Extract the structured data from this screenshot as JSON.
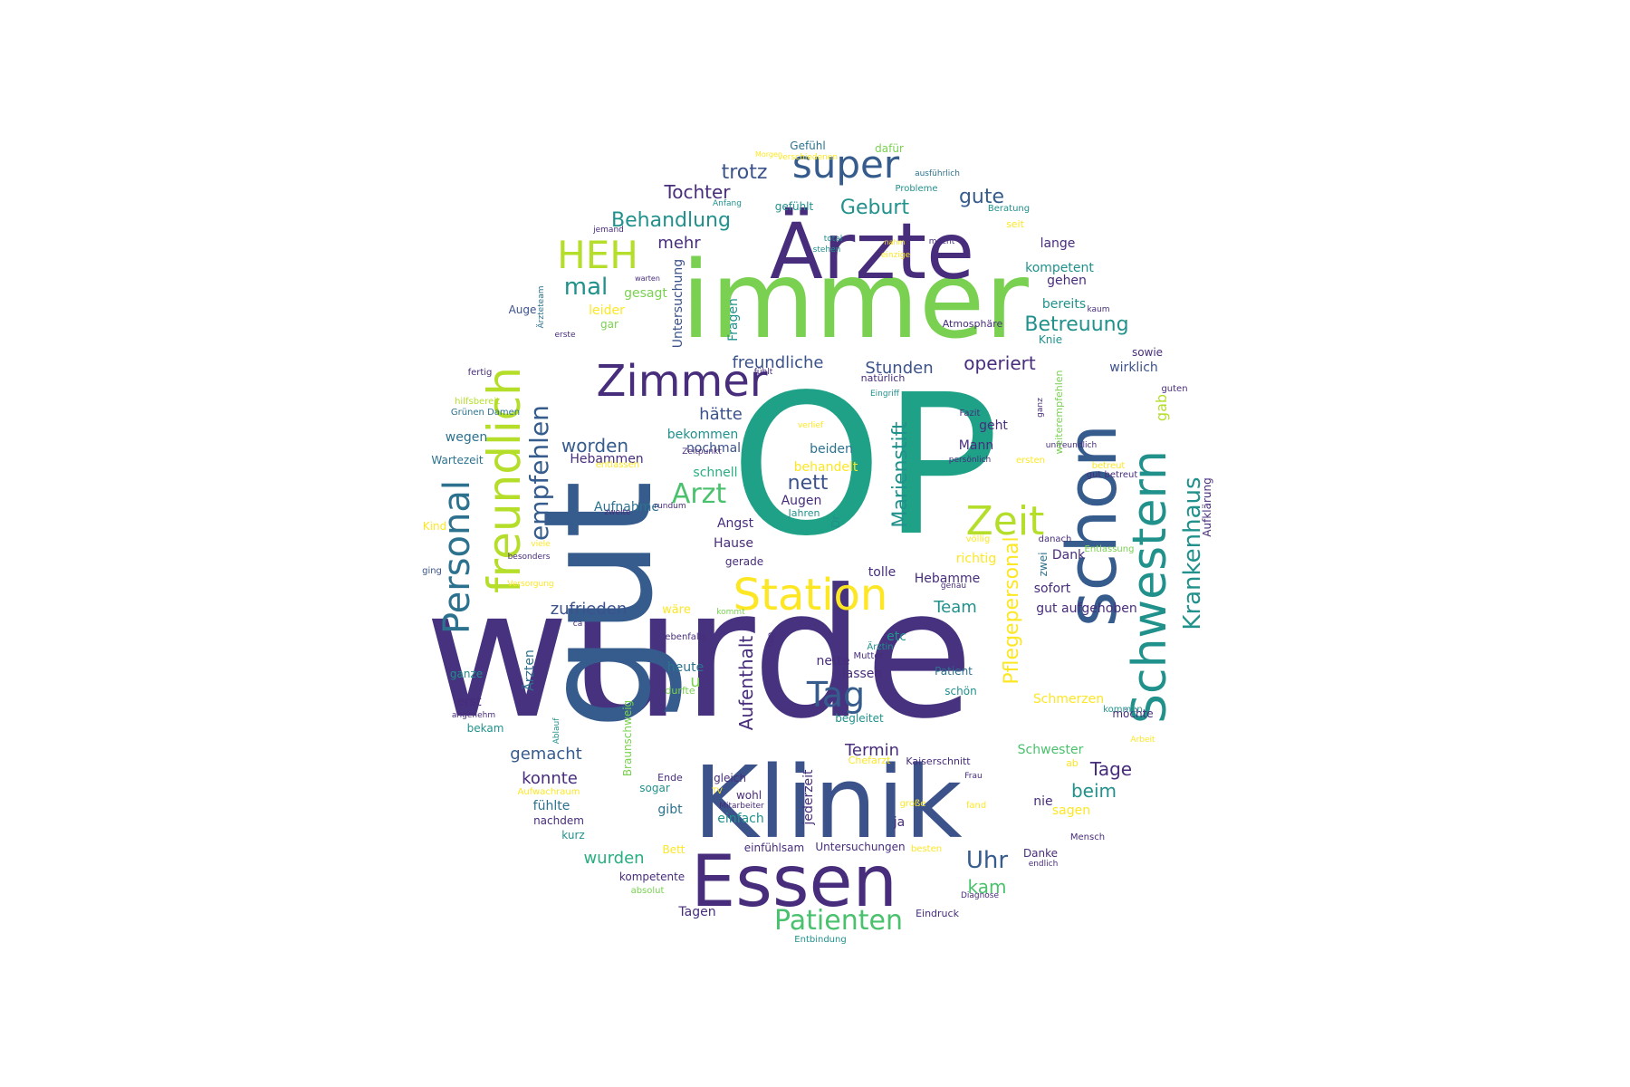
{
  "palette": {
    "dark_purple": "#46327e",
    "purple": "#472d7b",
    "blue": "#365c8d",
    "steel_blue": "#3b528b",
    "teal_blue": "#2c728e",
    "teal": "#21918c",
    "green_teal": "#1fa187",
    "sea_green": "#28ae80",
    "green": "#4ac16d",
    "lime": "#7ad151",
    "yellow_green": "#b5de2b",
    "yellow": "#fde725"
  },
  "words": [
    {
      "text": "wurde",
      "color": "dark_purple"
    },
    {
      "text": "OP",
      "color": "green_teal"
    },
    {
      "text": "gut",
      "color": "blue"
    },
    {
      "text": "immer",
      "color": "lime"
    },
    {
      "text": "Klinik",
      "color": "steel_blue"
    },
    {
      "text": "Ärzte",
      "color": "purple"
    },
    {
      "text": "Essen",
      "color": "purple"
    },
    {
      "text": "schon",
      "color": "blue"
    },
    {
      "text": "Schwestern",
      "color": "teal"
    },
    {
      "text": "HEH",
      "color": "yellow_green"
    },
    {
      "text": "freundlich",
      "color": "yellow_green"
    },
    {
      "text": "Personal",
      "color": "teal_blue"
    },
    {
      "text": "Station",
      "color": "yellow"
    },
    {
      "text": "Zimmer",
      "color": "purple"
    },
    {
      "text": "super",
      "color": "blue"
    },
    {
      "text": "Zeit",
      "color": "yellow_green"
    },
    {
      "text": "Tag",
      "color": "blue"
    },
    {
      "text": "Patienten",
      "color": "green"
    },
    {
      "text": "Krankenhaus",
      "color": "teal"
    },
    {
      "text": "empfehlen",
      "color": "blue"
    },
    {
      "text": "Arzt",
      "color": "green"
    },
    {
      "text": "mal",
      "color": "teal"
    },
    {
      "text": "Behandlung",
      "color": "teal"
    },
    {
      "text": "Marienstift",
      "color": "teal"
    },
    {
      "text": "Betreuung",
      "color": "teal"
    },
    {
      "text": "Uhr",
      "color": "blue"
    },
    {
      "text": "Pflegepersonal",
      "color": "yellow"
    },
    {
      "text": "Aufenthalt",
      "color": "purple"
    },
    {
      "text": "Tochter",
      "color": "purple"
    },
    {
      "text": "Geburt",
      "color": "teal"
    },
    {
      "text": "trotz",
      "color": "steel_blue"
    },
    {
      "text": "gute",
      "color": "blue"
    },
    {
      "text": "freundliche",
      "color": "steel_blue"
    },
    {
      "text": "Stunden",
      "color": "steel_blue"
    },
    {
      "text": "operiert",
      "color": "purple"
    },
    {
      "text": "worden",
      "color": "blue"
    },
    {
      "text": "nett",
      "color": "steel_blue"
    },
    {
      "text": "zufrieden",
      "color": "steel_blue"
    },
    {
      "text": "konnte",
      "color": "purple"
    },
    {
      "text": "gemacht",
      "color": "blue"
    },
    {
      "text": "wurden",
      "color": "sea_green"
    },
    {
      "text": "Termin",
      "color": "purple"
    },
    {
      "text": "Tage",
      "color": "purple"
    },
    {
      "text": "beim",
      "color": "teal"
    },
    {
      "text": "kam",
      "color": "green"
    },
    {
      "text": "Team",
      "color": "teal"
    },
    {
      "text": "mehr",
      "color": "purple"
    },
    {
      "text": "hätte",
      "color": "steel_blue"
    },
    {
      "text": "Untersuchung",
      "color": "steel_blue"
    },
    {
      "text": "Fragen",
      "color": "teal"
    },
    {
      "text": "gab",
      "color": "yellow_green"
    },
    {
      "text": "wirklich",
      "color": "steel_blue"
    },
    {
      "text": "Aufklärung",
      "color": "purple"
    },
    {
      "text": "kompetent",
      "color": "teal"
    },
    {
      "text": "lange",
      "color": "purple"
    },
    {
      "text": "gehen",
      "color": "purple"
    },
    {
      "text": "bereits",
      "color": "teal"
    },
    {
      "text": "sowie",
      "color": "purple"
    },
    {
      "text": "Knie",
      "color": "teal"
    },
    {
      "text": "gesagt",
      "color": "lime"
    },
    {
      "text": "leider",
      "color": "yellow"
    },
    {
      "text": "gar",
      "color": "lime"
    },
    {
      "text": "Auge",
      "color": "steel_blue"
    },
    {
      "text": "bekommen",
      "color": "teal"
    },
    {
      "text": "nochmal",
      "color": "steel_blue"
    },
    {
      "text": "Hebammen",
      "color": "purple"
    },
    {
      "text": "schnell",
      "color": "sea_green"
    },
    {
      "text": "beiden",
      "color": "teal_blue"
    },
    {
      "text": "behandelt",
      "color": "yellow"
    },
    {
      "text": "Aufnahme",
      "color": "teal_blue"
    },
    {
      "text": "Angst",
      "color": "purple"
    },
    {
      "text": "Hause",
      "color": "purple"
    },
    {
      "text": "gerade",
      "color": "purple"
    },
    {
      "text": "tolle",
      "color": "purple"
    },
    {
      "text": "Hebamme",
      "color": "purple"
    },
    {
      "text": "richtig",
      "color": "yellow"
    },
    {
      "text": "geht",
      "color": "purple"
    },
    {
      "text": "Mann",
      "color": "purple"
    },
    {
      "text": "Dank",
      "color": "purple"
    },
    {
      "text": "sofort",
      "color": "purple"
    },
    {
      "text": "gut aufgehoben",
      "color": "purple"
    },
    {
      "text": "zwei",
      "color": "teal_blue"
    },
    {
      "text": "Augen",
      "color": "purple"
    },
    {
      "text": "Dr",
      "color": "teal"
    },
    {
      "text": "etc",
      "color": "teal"
    },
    {
      "text": "nette",
      "color": "purple"
    },
    {
      "text": "lassen",
      "color": "purple"
    },
    {
      "text": "u",
      "color": "lime"
    },
    {
      "text": "heute",
      "color": "teal_blue"
    },
    {
      "text": "Patient",
      "color": "teal_blue"
    },
    {
      "text": "schön",
      "color": "teal"
    },
    {
      "text": "Schmerzen",
      "color": "yellow"
    },
    {
      "text": "möchte",
      "color": "purple"
    },
    {
      "text": "Schwester",
      "color": "green"
    },
    {
      "text": "wegen",
      "color": "teal_blue"
    },
    {
      "text": "Wartezeit",
      "color": "teal_blue"
    },
    {
      "text": "Kind",
      "color": "yellow"
    },
    {
      "text": "ging",
      "color": "steel_blue"
    },
    {
      "text": "hilfsbereit",
      "color": "yellow_green"
    },
    {
      "text": "Grünen Damen",
      "color": "teal_blue"
    },
    {
      "text": "fertig",
      "color": "purple"
    },
    {
      "text": "Ärzteteam",
      "color": "teal_blue"
    },
    {
      "text": "erste",
      "color": "purple"
    },
    {
      "text": "Atmosphäre",
      "color": "purple"
    },
    {
      "text": "kaum",
      "color": "purple"
    },
    {
      "text": "fühlt",
      "color": "purple"
    },
    {
      "text": "natürlich",
      "color": "purple"
    },
    {
      "text": "Eingriff",
      "color": "teal"
    },
    {
      "text": "guten",
      "color": "purple"
    },
    {
      "text": "unfreundlich",
      "color": "purple"
    },
    {
      "text": "persönlich",
      "color": "purple"
    },
    {
      "text": "Fazit",
      "color": "purple"
    },
    {
      "text": "ganz",
      "color": "purple"
    },
    {
      "text": "weiterempfehlen",
      "color": "lime"
    },
    {
      "text": "verlief",
      "color": "yellow"
    },
    {
      "text": "Zeitpunkt",
      "color": "purple"
    },
    {
      "text": "entlassen",
      "color": "yellow"
    },
    {
      "text": "betreut",
      "color": "yellow"
    },
    {
      "text": "gut betreut",
      "color": "purple"
    },
    {
      "text": "ersten",
      "color": "yellow"
    },
    {
      "text": "rundum",
      "color": "purple"
    },
    {
      "text": "zweite",
      "color": "purple"
    },
    {
      "text": "Jahren",
      "color": "teal"
    },
    {
      "text": "völlig",
      "color": "yellow"
    },
    {
      "text": "danach",
      "color": "purple"
    },
    {
      "text": "Entlassung",
      "color": "lime"
    },
    {
      "text": "genau",
      "color": "purple"
    },
    {
      "text": "besonders",
      "color": "purple"
    },
    {
      "text": "viele",
      "color": "yellow"
    },
    {
      "text": "Versorgung",
      "color": "yellow"
    },
    {
      "text": "wäre",
      "color": "yellow"
    },
    {
      "text": "kommt",
      "color": "lime"
    },
    {
      "text": "ca",
      "color": "purple"
    },
    {
      "text": "ebenfalls",
      "color": "purple"
    },
    {
      "text": "top",
      "color": "purple"
    },
    {
      "text": "Ärztin",
      "color": "teal"
    },
    {
      "text": "Mutter",
      "color": "purple"
    },
    {
      "text": "Ärzten",
      "color": "teal_blue"
    },
    {
      "text": "Braunschweig",
      "color": "lime"
    },
    {
      "text": "ganze",
      "color": "teal"
    },
    {
      "text": "erst",
      "color": "purple"
    },
    {
      "text": "angenehm",
      "color": "purple"
    },
    {
      "text": "bekam",
      "color": "teal"
    },
    {
      "text": "Ablauf",
      "color": "teal"
    },
    {
      "text": "durfte",
      "color": "lime"
    },
    {
      "text": "begleitet",
      "color": "teal"
    },
    {
      "text": "kommen",
      "color": "teal"
    },
    {
      "text": "Arbeit",
      "color": "yellow"
    },
    {
      "text": "jederzeit",
      "color": "purple"
    },
    {
      "text": "Chefarzt",
      "color": "yellow"
    },
    {
      "text": "Kaiserschnitt",
      "color": "purple"
    },
    {
      "text": "Frau",
      "color": "purple"
    },
    {
      "text": "ab",
      "color": "yellow"
    },
    {
      "text": "Ende",
      "color": "purple"
    },
    {
      "text": "gleich",
      "color": "purple"
    },
    {
      "text": "sogar",
      "color": "teal"
    },
    {
      "text": "Aufwachraum",
      "color": "yellow"
    },
    {
      "text": "TV",
      "color": "yellow"
    },
    {
      "text": "wohl",
      "color": "purple"
    },
    {
      "text": "Mitarbeiter",
      "color": "purple"
    },
    {
      "text": "große",
      "color": "yellow"
    },
    {
      "text": "fand",
      "color": "yellow"
    },
    {
      "text": "nie",
      "color": "purple"
    },
    {
      "text": "sagen",
      "color": "yellow"
    },
    {
      "text": "fühlte",
      "color": "teal_blue"
    },
    {
      "text": "gibt",
      "color": "teal_blue"
    },
    {
      "text": "einfach",
      "color": "teal"
    },
    {
      "text": "ja",
      "color": "purple"
    },
    {
      "text": "nachdem",
      "color": "purple"
    },
    {
      "text": "kurz",
      "color": "teal"
    },
    {
      "text": "Bett",
      "color": "yellow"
    },
    {
      "text": "einfühlsam",
      "color": "purple"
    },
    {
      "text": "Untersuchungen",
      "color": "purple"
    },
    {
      "text": "besten",
      "color": "yellow"
    },
    {
      "text": "Danke",
      "color": "purple"
    },
    {
      "text": "endlich",
      "color": "purple"
    },
    {
      "text": "Mensch",
      "color": "purple"
    },
    {
      "text": "kompetente",
      "color": "purple"
    },
    {
      "text": "absolut",
      "color": "lime"
    },
    {
      "text": "Diagnose",
      "color": "purple"
    },
    {
      "text": "Tagen",
      "color": "purple"
    },
    {
      "text": "Eindruck",
      "color": "purple"
    },
    {
      "text": "Entbindung",
      "color": "teal"
    },
    {
      "text": "Gefühl",
      "color": "teal_blue"
    },
    {
      "text": "dafür",
      "color": "lime"
    },
    {
      "text": "Morgen",
      "color": "yellow"
    },
    {
      "text": "ausführlich",
      "color": "teal_blue"
    },
    {
      "text": "verschiedenen",
      "color": "yellow"
    },
    {
      "text": "Probleme",
      "color": "teal"
    },
    {
      "text": "Anfang",
      "color": "teal"
    },
    {
      "text": "gefühlt",
      "color": "teal"
    },
    {
      "text": "Beratung",
      "color": "teal"
    },
    {
      "text": "jemand",
      "color": "purple"
    },
    {
      "text": "seit",
      "color": "yellow"
    },
    {
      "text": "total",
      "color": "teal"
    },
    {
      "text": "nahm",
      "color": "yellow"
    },
    {
      "text": "macht",
      "color": "purple"
    },
    {
      "text": "stehen",
      "color": "teal"
    },
    {
      "text": "einzige",
      "color": "yellow"
    },
    {
      "text": "warten",
      "color": "purple"
    }
  ]
}
